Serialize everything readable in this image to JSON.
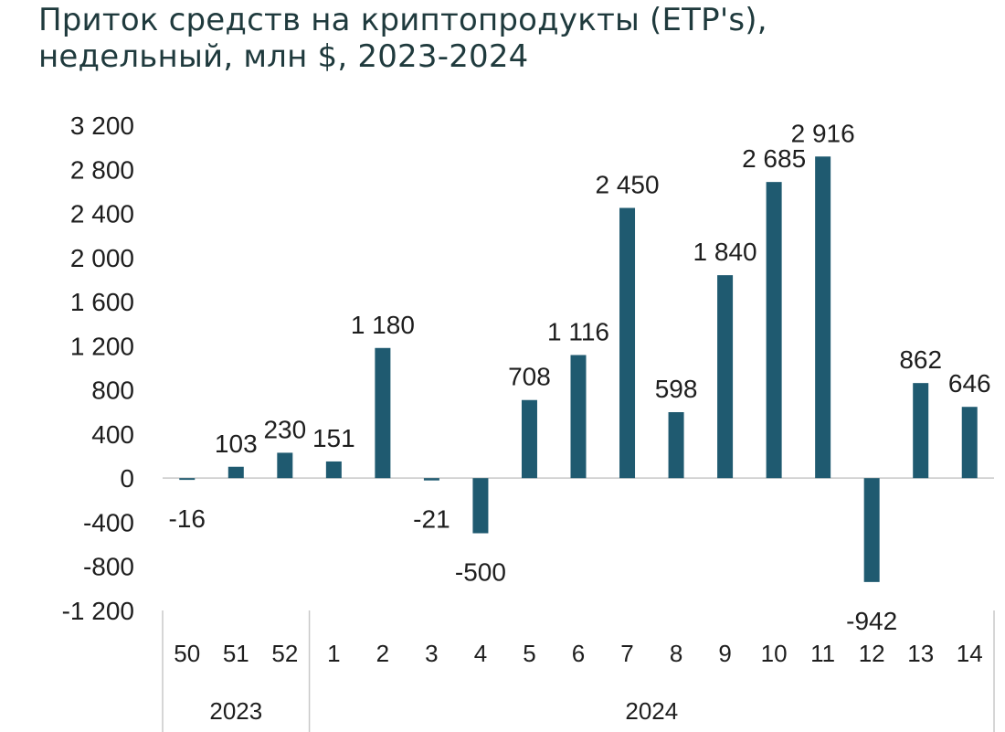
{
  "title_line1": "Приток средств на криптопродукты (ETP's),",
  "title_line2": "недельный, млн $, 2023-2024",
  "chart_data": {
    "type": "bar",
    "categories": [
      "50",
      "51",
      "52",
      "1",
      "2",
      "3",
      "4",
      "5",
      "6",
      "7",
      "8",
      "9",
      "10",
      "11",
      "12",
      "13",
      "14"
    ],
    "values": [
      -16,
      103,
      230,
      151,
      1180,
      -21,
      -500,
      708,
      1116,
      2450,
      598,
      1840,
      2685,
      2916,
      -942,
      862,
      646
    ],
    "value_labels": [
      "-16",
      "103",
      "230",
      "151",
      "1 180",
      "-21",
      "-500",
      "708",
      "1 116",
      "2 450",
      "598",
      "1 840",
      "2 685",
      "2 916",
      "-942",
      "862",
      "646"
    ],
    "year_groups": [
      {
        "label": "2023",
        "count": 3
      },
      {
        "label": "2024",
        "count": 14
      }
    ],
    "yticks": [
      3200,
      2800,
      2400,
      2000,
      1600,
      1200,
      800,
      400,
      0,
      -400,
      -800,
      -1200
    ],
    "ytick_labels": [
      "3 200",
      "2 800",
      "2 400",
      "2 000",
      "1 600",
      "1 200",
      "800",
      "400",
      "0",
      "-400",
      "-800",
      "-1 200"
    ],
    "ylim": [
      -1200,
      3200
    ],
    "grid": false,
    "bar_color": "#1f5a70",
    "axis_color": "#c8c8c8"
  }
}
